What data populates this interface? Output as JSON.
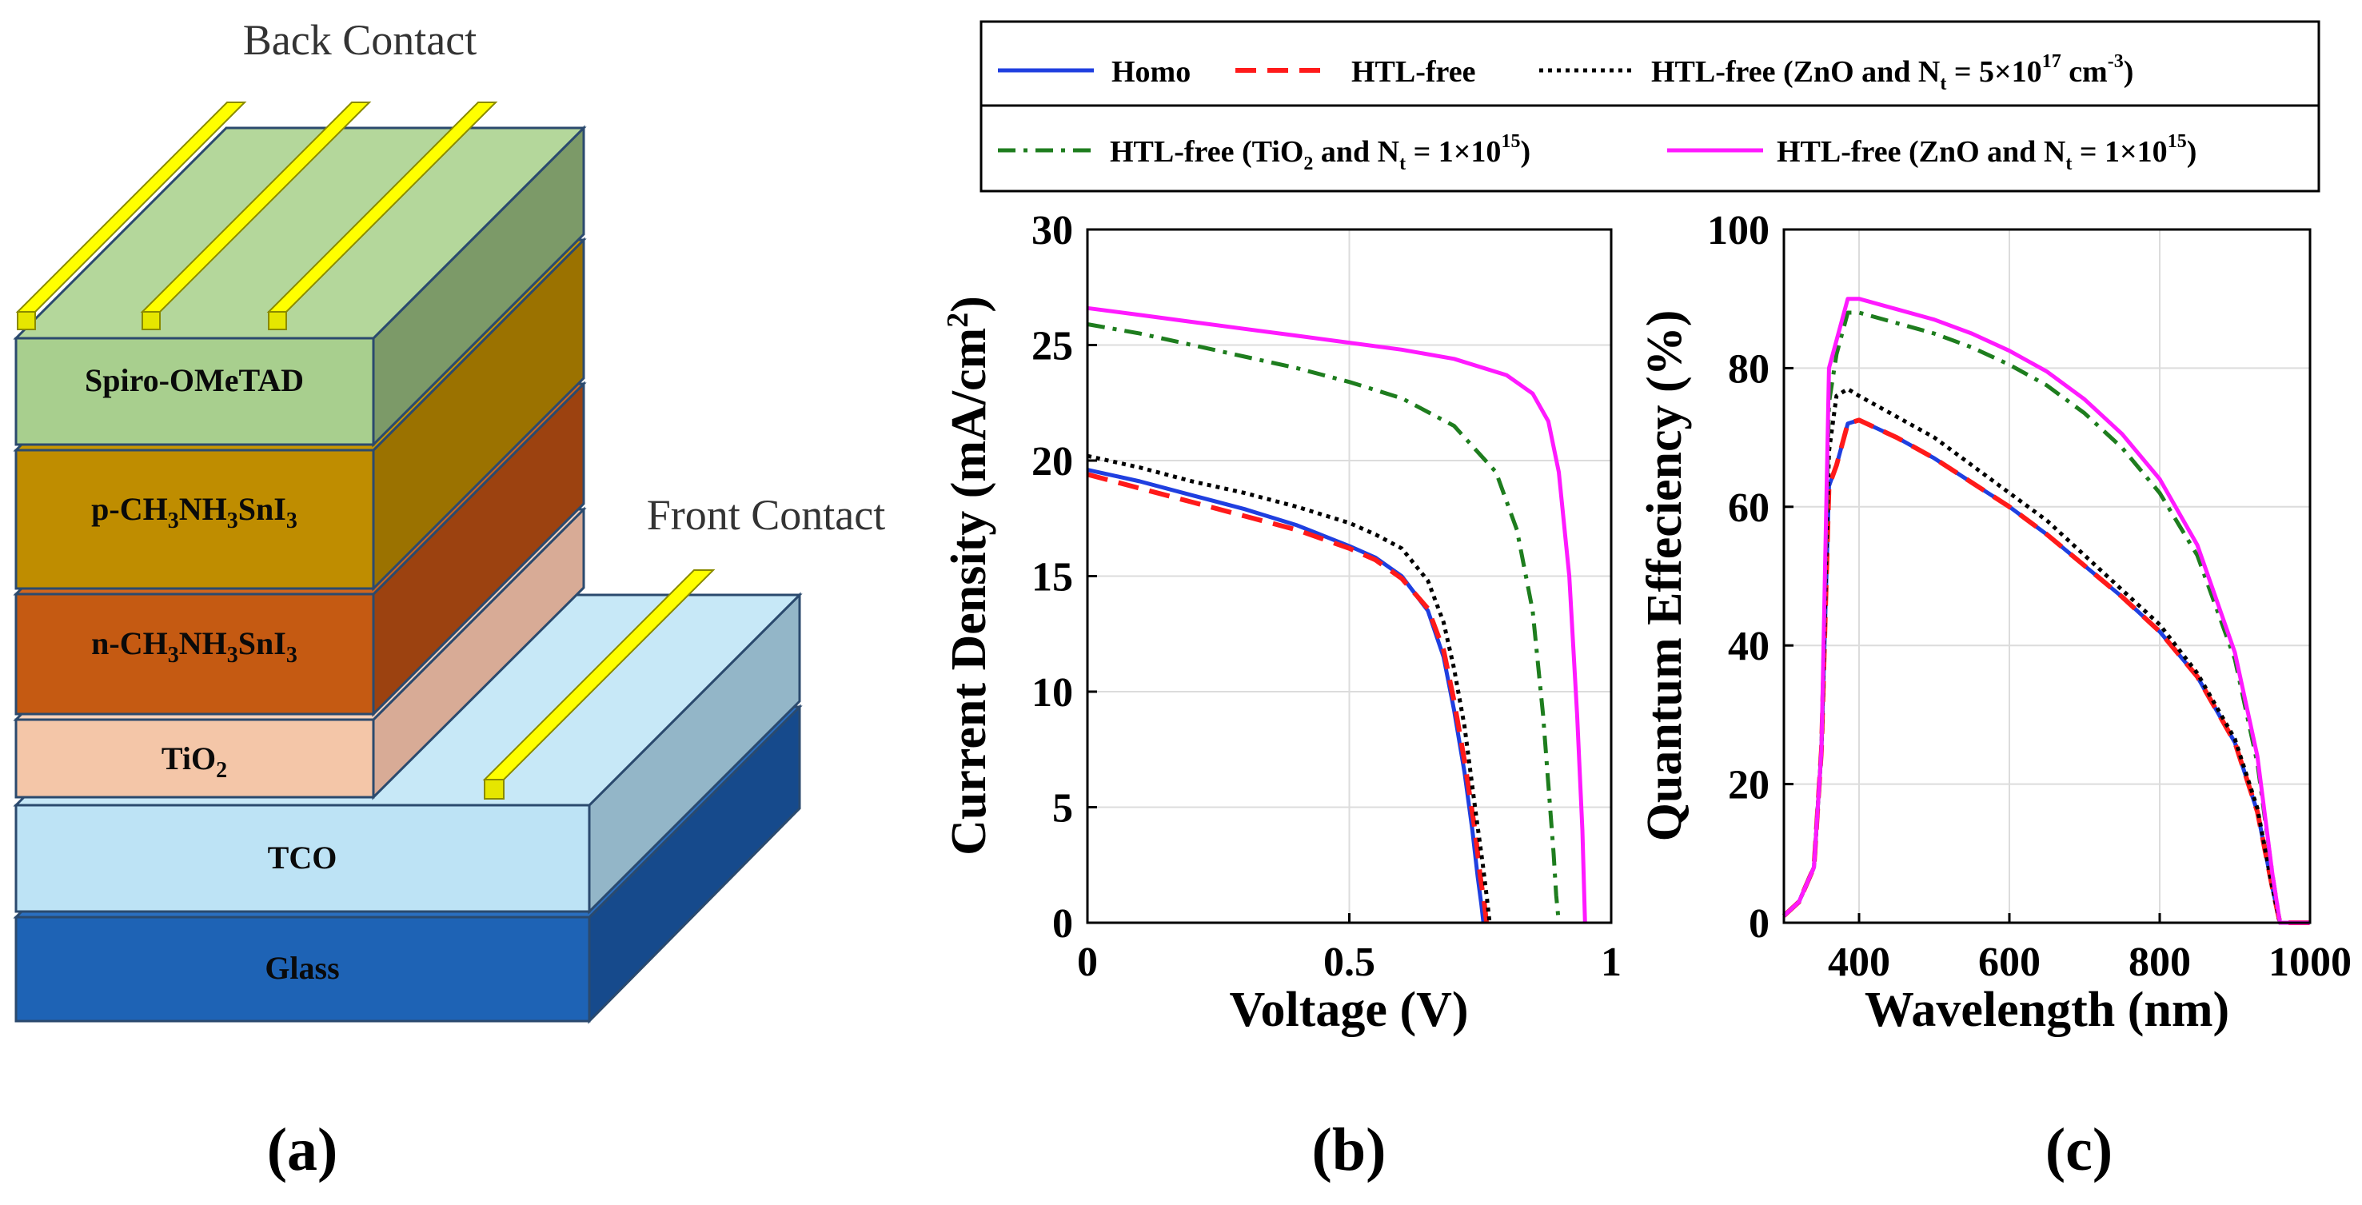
{
  "figure": {
    "panel_a": {
      "panel_label": "(a)",
      "back_contact_label": "Back Contact",
      "front_contact_label": "Front Contact",
      "layers": [
        {
          "key": "spiro",
          "label": "Spiro-OMeTAD",
          "color": "#a8cf8e"
        },
        {
          "key": "p_layer",
          "label": "p-CH3NH3SnI3",
          "color": "#bf8d00"
        },
        {
          "key": "n_layer",
          "label": "n-CH3NH3SnI3",
          "color": "#c55a12"
        },
        {
          "key": "tio2",
          "label": "TiO2",
          "color": "#f4c6a8"
        },
        {
          "key": "tco",
          "label": "TCO",
          "color": "#bde3f5"
        },
        {
          "key": "glass",
          "label": "Glass",
          "color": "#1e6bbd"
        }
      ],
      "contact_color": "#ffff00"
    },
    "panel_b_label": "(b)",
    "panel_c_label": "(c)"
  },
  "legend": {
    "items": [
      {
        "label": "Homo",
        "color": "#1f3fe0",
        "dash": "solid"
      },
      {
        "label": "HTL-free",
        "color": "#ff1a1a",
        "dash": "dashed"
      },
      {
        "label": "HTL-free (ZnO and Nt = 5×10^17 cm^-3)",
        "color": "#000000",
        "dash": "dotted"
      },
      {
        "label": "HTL-free (TiO2 and Nt = 1×10^15)",
        "color": "#1e7d1e",
        "dash": "dashdot"
      },
      {
        "label": "HTL-free (ZnO and Nt = 1×10^15)",
        "color": "#ff1aff",
        "dash": "solid"
      }
    ]
  },
  "chart_data": [
    {
      "type": "line",
      "panel": "(b)",
      "xlabel": "Voltage (V)",
      "ylabel": "Current Density (mA/cm2)",
      "xlim": [
        0,
        1
      ],
      "ylim": [
        0,
        30
      ],
      "xticks": [
        0,
        0.5,
        1
      ],
      "xtick_labels": [
        "0",
        "0.5",
        "1"
      ],
      "yticks": [
        0,
        5,
        10,
        15,
        20,
        25,
        30
      ],
      "grid": true,
      "series": [
        {
          "name": "Homo",
          "color": "#1f3fe0",
          "dash": "solid",
          "x": [
            0,
            0.1,
            0.2,
            0.3,
            0.4,
            0.5,
            0.55,
            0.6,
            0.65,
            0.68,
            0.7,
            0.72,
            0.735,
            0.745,
            0.752,
            0.756
          ],
          "y": [
            19.6,
            19.1,
            18.5,
            17.9,
            17.2,
            16.3,
            15.8,
            15.0,
            13.5,
            11.5,
            9.2,
            6.5,
            4.0,
            2.0,
            0.8,
            0
          ]
        },
        {
          "name": "HTL-free",
          "color": "#ff1a1a",
          "dash": "dashed",
          "x": [
            0,
            0.1,
            0.2,
            0.3,
            0.4,
            0.5,
            0.55,
            0.6,
            0.65,
            0.68,
            0.7,
            0.72,
            0.74,
            0.75,
            0.758,
            0.762
          ],
          "y": [
            19.4,
            18.8,
            18.2,
            17.6,
            17.0,
            16.2,
            15.7,
            14.9,
            13.6,
            11.8,
            9.6,
            7.0,
            4.0,
            2.0,
            0.8,
            0
          ]
        },
        {
          "name": "HTL-free (ZnO and Nt = 5×10^17 cm^-3)",
          "color": "#000000",
          "dash": "dotted",
          "x": [
            0,
            0.1,
            0.2,
            0.3,
            0.4,
            0.5,
            0.55,
            0.6,
            0.65,
            0.68,
            0.7,
            0.72,
            0.74,
            0.755,
            0.763,
            0.768
          ],
          "y": [
            20.2,
            19.7,
            19.1,
            18.6,
            18.0,
            17.3,
            16.8,
            16.2,
            14.8,
            13.0,
            11.0,
            8.5,
            5.0,
            2.5,
            1.0,
            0
          ]
        },
        {
          "name": "HTL-free (TiO2 and Nt = 1×10^15)",
          "color": "#1e7d1e",
          "dash": "dashdot",
          "x": [
            0,
            0.1,
            0.2,
            0.3,
            0.4,
            0.5,
            0.6,
            0.7,
            0.78,
            0.82,
            0.85,
            0.87,
            0.88,
            0.89,
            0.895,
            0.9
          ],
          "y": [
            25.9,
            25.5,
            25.0,
            24.5,
            24.0,
            23.4,
            22.7,
            21.5,
            19.5,
            17.0,
            13.5,
            9.0,
            6.0,
            3.0,
            1.2,
            0
          ]
        },
        {
          "name": "HTL-free (ZnO and Nt = 1×10^15)",
          "color": "#ff1aff",
          "dash": "solid",
          "x": [
            0,
            0.1,
            0.2,
            0.3,
            0.4,
            0.5,
            0.6,
            0.7,
            0.8,
            0.85,
            0.88,
            0.9,
            0.92,
            0.935,
            0.945,
            0.95
          ],
          "y": [
            26.6,
            26.3,
            26.0,
            25.7,
            25.4,
            25.1,
            24.8,
            24.4,
            23.7,
            22.9,
            21.7,
            19.5,
            15.0,
            9.0,
            4.0,
            0
          ]
        }
      ]
    },
    {
      "type": "line",
      "panel": "(c)",
      "xlabel": "Wavelength (nm)",
      "ylabel": "Quantum Effeciency (%)",
      "xlim": [
        300,
        1000
      ],
      "ylim": [
        0,
        100
      ],
      "xticks": [
        400,
        600,
        800,
        1000
      ],
      "yticks": [
        0,
        20,
        40,
        60,
        80,
        100
      ],
      "grid": true,
      "series": [
        {
          "name": "Homo",
          "color": "#1f3fe0",
          "dash": "solid",
          "x": [
            300,
            320,
            340,
            350,
            360,
            370,
            385,
            400,
            450,
            500,
            550,
            600,
            650,
            700,
            750,
            800,
            850,
            900,
            930,
            950,
            960,
            980,
            1000
          ],
          "y": [
            1,
            3,
            8,
            25,
            63,
            66,
            72,
            72.5,
            70,
            67,
            63.5,
            60,
            56,
            51.5,
            47,
            42,
            35.5,
            26,
            16,
            5,
            0,
            0,
            0
          ]
        },
        {
          "name": "HTL-free",
          "color": "#ff1a1a",
          "dash": "dashed",
          "x": [
            300,
            320,
            340,
            350,
            360,
            370,
            385,
            400,
            450,
            500,
            550,
            600,
            650,
            700,
            750,
            800,
            850,
            900,
            930,
            950,
            960,
            980,
            1000
          ],
          "y": [
            1,
            3,
            8,
            25,
            63,
            66,
            72,
            72.5,
            70,
            67,
            63.5,
            60,
            56,
            51.5,
            47,
            42,
            35.5,
            26,
            16,
            5,
            0,
            0,
            0
          ]
        },
        {
          "name": "HTL-free (ZnO and Nt = 5×10^17 cm^-3)",
          "color": "#000000",
          "dash": "dotted",
          "x": [
            300,
            320,
            340,
            350,
            360,
            370,
            385,
            400,
            450,
            500,
            550,
            600,
            650,
            700,
            750,
            800,
            850,
            900,
            930,
            950,
            960,
            980,
            1000
          ],
          "y": [
            1,
            3,
            8,
            25,
            68,
            76,
            77,
            76,
            73,
            70,
            66,
            62,
            58,
            53,
            48,
            43,
            36,
            26.5,
            16.5,
            5,
            0,
            0,
            0
          ]
        },
        {
          "name": "HTL-free (TiO2 and Nt = 1×10^15)",
          "color": "#1e7d1e",
          "dash": "dashdot",
          "x": [
            300,
            320,
            340,
            350,
            360,
            370,
            385,
            400,
            450,
            500,
            550,
            600,
            650,
            700,
            750,
            800,
            850,
            900,
            930,
            950,
            960,
            980,
            1000
          ],
          "y": [
            1,
            3,
            8,
            25,
            75,
            82,
            88,
            88,
            86.5,
            85,
            83,
            80.5,
            77.5,
            73.5,
            68.5,
            62,
            53,
            38,
            23,
            7,
            0,
            0,
            0
          ]
        },
        {
          "name": "HTL-free (ZnO and Nt = 1×10^15)",
          "color": "#ff1aff",
          "dash": "solid",
          "x": [
            300,
            320,
            340,
            350,
            360,
            370,
            385,
            400,
            450,
            500,
            550,
            600,
            650,
            700,
            750,
            800,
            850,
            900,
            930,
            950,
            960,
            980,
            1000
          ],
          "y": [
            1,
            3,
            8,
            25,
            80,
            84,
            90,
            90,
            88.5,
            87,
            85,
            82.5,
            79.5,
            75.5,
            70.5,
            64,
            54.5,
            39,
            24,
            7,
            0,
            0,
            0
          ]
        }
      ]
    }
  ]
}
